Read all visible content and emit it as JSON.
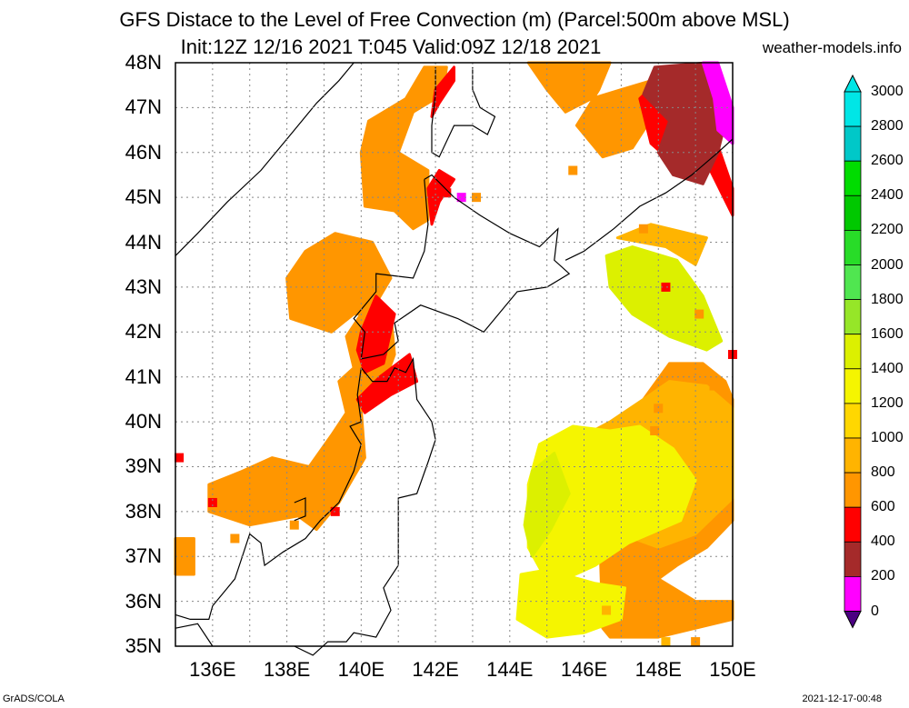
{
  "title_line1": "GFS Distace to the Level of Free Convection (m) (Parcel:500m above MSL)",
  "title_line2": "Init:12Z 12/16 2021 T:045 Valid:09Z 12/18 2021",
  "site": "weather-models.info",
  "footer_left": "GrADS/COLA",
  "footer_right": "2021-12-17-00:48",
  "lat_labels": [
    "48N",
    "47N",
    "46N",
    "45N",
    "44N",
    "43N",
    "42N",
    "41N",
    "40N",
    "39N",
    "38N",
    "37N",
    "36N",
    "35N"
  ],
  "lon_labels": [
    "136E",
    "138E",
    "140E",
    "142E",
    "144E",
    "146E",
    "148E",
    "150E"
  ],
  "colorbar": {
    "levels": [
      "3000",
      "2800",
      "2600",
      "2400",
      "2200",
      "2000",
      "1800",
      "1600",
      "1400",
      "1200",
      "1000",
      "800",
      "600",
      "400",
      "200",
      "0"
    ],
    "colors": [
      "#00e6e6",
      "#00c8c8",
      "#00dc00",
      "#00c800",
      "#28dc28",
      "#50e650",
      "#96e628",
      "#dcf000",
      "#f5f500",
      "#ffd700",
      "#ffb400",
      "#ff9600",
      "#ff0000",
      "#a52a2a",
      "#ff00ff",
      "#4b0082"
    ]
  },
  "map": {
    "lon_range": [
      135,
      150
    ],
    "lat_range": [
      35,
      48
    ],
    "grid": "dotted",
    "fields": [
      {
        "category": "0-200",
        "color": "#4b0082"
      },
      {
        "category": "200-400",
        "color": "#ff00ff"
      },
      {
        "category": "400-600",
        "color": "#a52a2a"
      },
      {
        "category": "600-800",
        "color": "#ff0000"
      },
      {
        "category": "800-1000",
        "color": "#ff9600"
      },
      {
        "category": "1000-1200",
        "color": "#ffb400"
      },
      {
        "category": "1200-1400",
        "color": "#ffd700"
      },
      {
        "category": "1400-1600",
        "color": "#f5f500"
      },
      {
        "category": "1600-1800",
        "color": "#dcf000"
      },
      {
        "category": "1800-2000",
        "color": "#96e628"
      }
    ]
  }
}
